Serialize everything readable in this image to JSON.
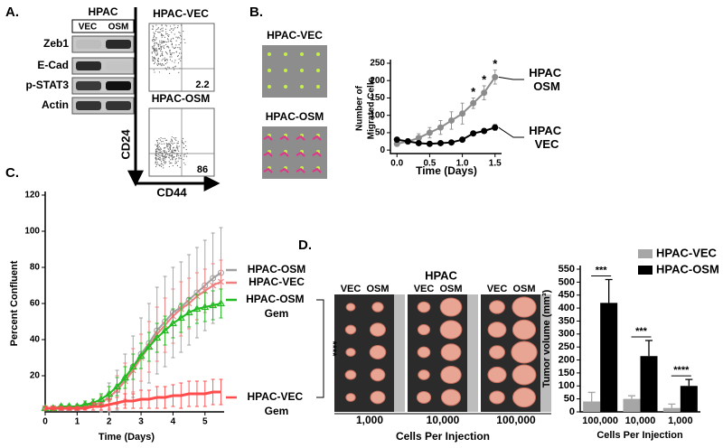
{
  "panel_labels": [
    "A.",
    "B.",
    "C.",
    "D."
  ],
  "blot": {
    "title": "HPAC",
    "lanes": [
      "VEC",
      "OSM"
    ],
    "rows": [
      "Zeb1",
      "E-Cad",
      "p-STAT3",
      "Actin"
    ]
  },
  "flow": {
    "plots": [
      {
        "title": "HPAC-VEC",
        "value": 2.2
      },
      {
        "title": "HPAC-OSM",
        "value": 86
      }
    ],
    "ylabel": "CD24",
    "xlabel": "CD44"
  },
  "migration_images": [
    "HPAC-VEC",
    "HPAC-OSM"
  ],
  "xenograft": {
    "title": "HPAC",
    "lanes": [
      "VEC",
      "OSM"
    ],
    "groups": [
      "1,000",
      "10,000",
      "100,000"
    ],
    "caption": "Cells Per Injection"
  },
  "chart_data": [
    {
      "type": "line",
      "ylabel": [
        "Number of",
        "Migrated Cells"
      ],
      "xlabel": "Time (Days)",
      "x": [
        0,
        0.167,
        0.333,
        0.5,
        0.667,
        0.833,
        1,
        1.167,
        1.333,
        1.5
      ],
      "series": [
        {
          "name": "HPAC OSM",
          "color": "#8c8c8c",
          "marker": "circle-filled",
          "values": [
            18,
            25,
            35,
            50,
            65,
            85,
            105,
            135,
            165,
            210
          ],
          "errors": [
            5,
            8,
            12,
            15,
            20,
            25,
            30,
            15,
            20,
            20
          ]
        },
        {
          "name": "HPAC VEC",
          "color": "#000000",
          "marker": "circle-filled",
          "values": [
            30,
            25,
            20,
            18,
            20,
            22,
            30,
            48,
            55,
            65
          ],
          "errors": [
            5,
            4,
            4,
            4,
            4,
            4,
            5,
            6,
            6,
            8
          ]
        }
      ],
      "xlim": [
        -0.1,
        1.6
      ],
      "ylim": [
        -10,
        250
      ],
      "xticks": [
        {
          "value": 0,
          "label": "0.0"
        },
        {
          "value": 0.5,
          "label": "0.5"
        },
        {
          "value": 1,
          "label": "1.0"
        },
        {
          "value": 1.5,
          "label": "1.5"
        }
      ],
      "yticks": [
        0,
        50,
        100,
        150,
        200,
        250
      ],
      "annotations": [
        {
          "x": 1.167,
          "text": "*"
        },
        {
          "x": 1.333,
          "text": "*"
        },
        {
          "x": 1.5,
          "text": "*"
        }
      ]
    },
    {
      "type": "line",
      "ylabel": "Percent Confluent",
      "xlabel": "Time (Days)",
      "x": [
        0,
        0.25,
        0.5,
        0.75,
        1,
        1.25,
        1.5,
        1.75,
        2,
        2.25,
        2.5,
        2.75,
        3,
        3.25,
        3.5,
        3.75,
        4,
        4.25,
        4.5,
        4.75,
        5,
        5.25,
        5.5
      ],
      "series": [
        {
          "name": "HPAC-OSM",
          "color": "#a0a0a0",
          "marker": "circle-open",
          "values": [
            2,
            2,
            2,
            2,
            2,
            3,
            4,
            5,
            8,
            12,
            18,
            25,
            32,
            38,
            45,
            50,
            55,
            58,
            62,
            66,
            70,
            74,
            77
          ],
          "errors": [
            1,
            1,
            1,
            1,
            1,
            2,
            3,
            5,
            8,
            11,
            14,
            17,
            20,
            22,
            24,
            25,
            25,
            25,
            25,
            25,
            25,
            25,
            25
          ]
        },
        {
          "name": "HPAC-VEC",
          "color": "#f08080",
          "marker": "x",
          "values": [
            2,
            2,
            2,
            2,
            2,
            3,
            4,
            5,
            8,
            12,
            17,
            23,
            30,
            36,
            43,
            48,
            53,
            57,
            60,
            64,
            67,
            70,
            72
          ],
          "errors": [
            1,
            1,
            1,
            1,
            1,
            2,
            3,
            4,
            6,
            8,
            10,
            12,
            13,
            14,
            15,
            15,
            15,
            15,
            14,
            13,
            12,
            12,
            12
          ]
        },
        {
          "name": "HPAC-OSM Gem",
          "color": "#22bb22",
          "marker": "triangle",
          "values": [
            2,
            2,
            3,
            3,
            3,
            4,
            5,
            7,
            10,
            14,
            19,
            25,
            31,
            36,
            41,
            45,
            49,
            52,
            55,
            57,
            58,
            59,
            60
          ],
          "errors": [
            1,
            1,
            1,
            1,
            1,
            2,
            2,
            3,
            4,
            5,
            6,
            7,
            7,
            8,
            8,
            8,
            8,
            8,
            8,
            8,
            8,
            8,
            8
          ]
        },
        {
          "name": "HPAC-VEC Gem",
          "color": "#ff4d4d",
          "values": [
            2,
            2,
            2,
            2,
            2,
            2,
            3,
            3,
            4,
            5,
            6,
            6,
            7,
            7,
            8,
            8,
            9,
            9,
            10,
            10,
            10,
            11,
            11
          ],
          "errors": [
            1,
            1,
            1,
            1,
            1,
            1,
            2,
            2,
            3,
            3,
            4,
            4,
            5,
            5,
            6,
            6,
            6,
            7,
            7,
            7,
            7,
            7,
            7
          ]
        }
      ],
      "xlim": [
        0,
        5.6
      ],
      "ylim": [
        0,
        120
      ],
      "xticks": [
        0,
        1,
        2,
        3,
        4,
        5
      ],
      "yticks": [
        20,
        40,
        60,
        80,
        100,
        120
      ],
      "significance": "****"
    },
    {
      "type": "bar",
      "ylabel": "Tumor volume (mm³)",
      "xlabel": "Cells Per Injection",
      "categories": [
        "100,000",
        "10,000",
        "1,000"
      ],
      "series": [
        {
          "name": "HPAC-VEC",
          "color": "#a6a6a6",
          "values": [
            40,
            50,
            15
          ],
          "errors": [
            35,
            12,
            15
          ]
        },
        {
          "name": "HPAC-OSM",
          "color": "#000000",
          "values": [
            420,
            215,
            100
          ],
          "errors": [
            90,
            60,
            25
          ]
        }
      ],
      "ylim": [
        0,
        550
      ],
      "yticks": [
        0,
        50,
        100,
        150,
        200,
        250,
        300,
        350,
        400,
        450,
        500,
        550
      ],
      "significance": [
        "***",
        "***",
        "****"
      ]
    }
  ]
}
